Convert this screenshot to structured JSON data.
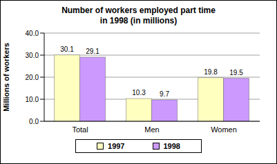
{
  "chart_data": {
    "type": "bar",
    "title": [
      "Number of workers employed part time",
      "in 1998 (in millions)"
    ],
    "ylabel": "Millions of workers",
    "categories": [
      "Total",
      "Men",
      "Women"
    ],
    "series": [
      {
        "name": "1997",
        "color": "#ffffc0",
        "values": [
          30.1,
          10.3,
          19.8
        ]
      },
      {
        "name": "1998",
        "color": "#cc99ff",
        "values": [
          29.1,
          9.7,
          19.5
        ]
      }
    ],
    "ylim": [
      0,
      40
    ],
    "yticks": [
      {
        "value": 0,
        "label": "0.0"
      },
      {
        "value": 10,
        "label": "10.0"
      },
      {
        "value": 20,
        "label": "20.0"
      },
      {
        "value": 30,
        "label": "30.0"
      },
      {
        "value": 40,
        "label": "40.0"
      }
    ],
    "grid": true,
    "legend": "bottom",
    "data_labels": true
  }
}
